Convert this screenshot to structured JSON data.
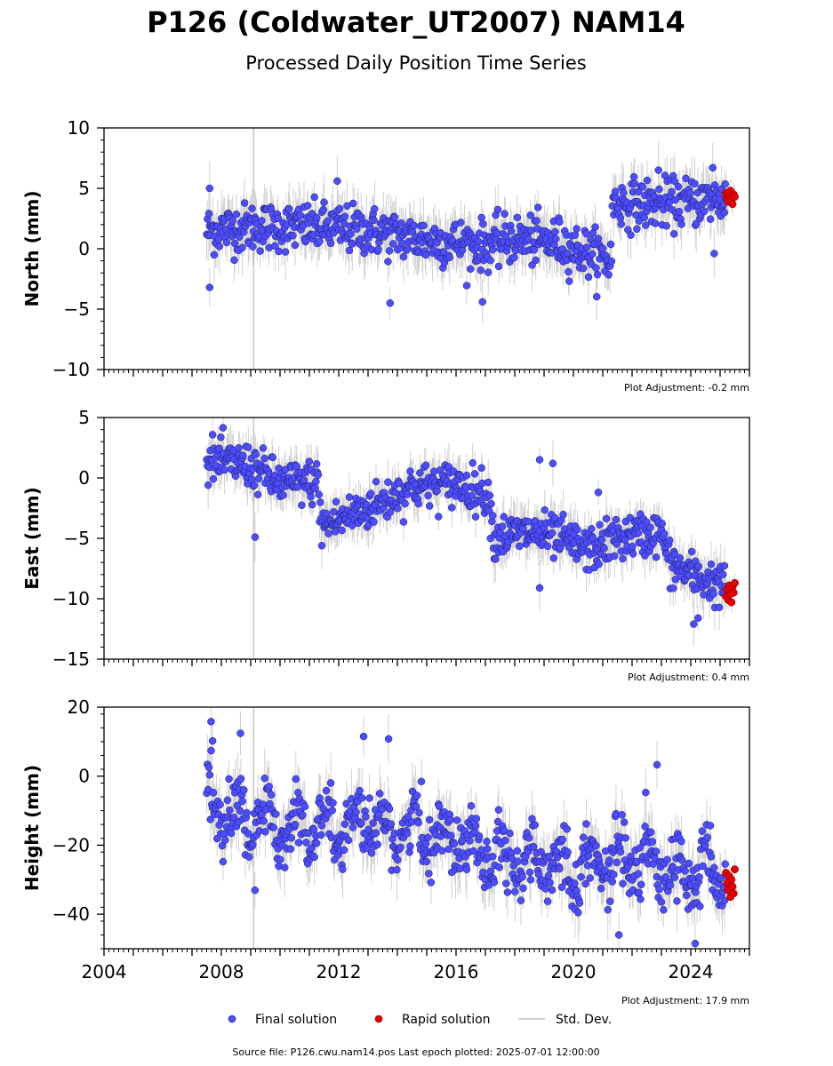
{
  "title": "P126 (Coldwater_UT2007) NAM14",
  "subtitle": "Processed Daily Position Time Series",
  "source_line": "Source file: P126.cwu.nam14.pos  Last epoch plotted: 2025-07-01 12:00:00",
  "legend": {
    "final_label": "Final solution",
    "rapid_label": "Rapid solution",
    "std_label": "Std. Dev."
  },
  "colors": {
    "final": "#4d4dff",
    "final_edge": "#1a1a55",
    "rapid": "#e60000",
    "rapid_edge": "#7a0000",
    "std": "#9a9a9a",
    "vline": "#c8c8c8"
  },
  "chart_data": [
    {
      "type": "scatter",
      "ylabel": "North (mm)",
      "ylim": [
        -10,
        10
      ],
      "yticks": [
        10,
        5,
        0,
        -5,
        -10
      ],
      "ytick_labels": [
        "10",
        "5",
        "0",
        "−5",
        "−10"
      ],
      "xlim": [
        2004,
        2026
      ],
      "adjustment": "Plot Adjustment: -0.2 mm",
      "data_start": 2007.5,
      "rapid_start": 2025.2,
      "data_end": 2025.5,
      "vertical_line": 2009.1,
      "noise_sd": 1.0,
      "err_half": 1.6,
      "trend": [
        [
          2007.5,
          1.5
        ],
        [
          2009.0,
          1.8
        ],
        [
          2011.0,
          1.8
        ],
        [
          2013.0,
          1.5
        ],
        [
          2015.0,
          0.7
        ],
        [
          2017.0,
          0.3
        ],
        [
          2018.0,
          0.8
        ],
        [
          2019.5,
          0.5
        ],
        [
          2021.3,
          -1.0
        ],
        [
          2021.31,
          3.8
        ],
        [
          2023.0,
          3.7
        ],
        [
          2025.5,
          4.2
        ]
      ],
      "rapid_values": [
        4.6,
        4.2,
        3.9,
        4.4,
        4.8,
        4.1,
        3.7,
        4.5,
        4.3
      ],
      "outliers": [
        [
          2007.6,
          -3.2
        ],
        [
          2007.6,
          5.0
        ],
        [
          2013.75,
          -4.5
        ],
        [
          2016.9,
          -4.4
        ],
        [
          2011.95,
          5.6
        ],
        [
          2022.9,
          6.5
        ],
        [
          2024.8,
          -0.4
        ],
        [
          2024.75,
          6.7
        ]
      ]
    },
    {
      "type": "scatter",
      "ylabel": "East (mm)",
      "ylim": [
        -15,
        5
      ],
      "yticks": [
        5,
        0,
        -5,
        -10,
        -15
      ],
      "ytick_labels": [
        "5",
        "0",
        "−5",
        "−10",
        "−15"
      ],
      "xlim": [
        2004,
        2026
      ],
      "adjustment": "Plot Adjustment: 0.4 mm",
      "data_start": 2007.5,
      "rapid_start": 2025.2,
      "data_end": 2025.5,
      "vertical_line": 2009.1,
      "noise_sd": 0.9,
      "err_half": 1.4,
      "trend": [
        [
          2007.5,
          1.5
        ],
        [
          2009.0,
          1.0
        ],
        [
          2010.0,
          -0.5
        ],
        [
          2011.3,
          -0.3
        ],
        [
          2011.4,
          -4.0
        ],
        [
          2012.5,
          -3.0
        ],
        [
          2013.5,
          -2.0
        ],
        [
          2014.5,
          -0.7
        ],
        [
          2016.0,
          -0.5
        ],
        [
          2017.1,
          -1.3
        ],
        [
          2017.3,
          -5.0
        ],
        [
          2018.5,
          -4.5
        ],
        [
          2019.5,
          -5.0
        ],
        [
          2020.5,
          -6.0
        ],
        [
          2021.5,
          -5.0
        ],
        [
          2023.0,
          -4.5
        ],
        [
          2023.3,
          -7.2
        ],
        [
          2024.0,
          -8.0
        ],
        [
          2025.5,
          -9.3
        ]
      ],
      "rapid_values": [
        -9.8,
        -9.2,
        -10.1,
        -8.9,
        -9.6,
        -10.3,
        -9.0,
        -9.5,
        -8.7
      ],
      "outliers": [
        [
          2009.15,
          -4.9
        ],
        [
          2018.85,
          1.5
        ],
        [
          2019.3,
          1.2
        ],
        [
          2020.85,
          -1.2
        ],
        [
          2018.85,
          -9.1
        ],
        [
          2024.1,
          -12.1
        ],
        [
          2024.25,
          -11.6
        ]
      ]
    },
    {
      "type": "scatter",
      "ylabel": "Height (mm)",
      "ylim": [
        -50,
        20
      ],
      "yticks": [
        20,
        0,
        -20,
        -40
      ],
      "ytick_labels": [
        "20",
        "0",
        "−20",
        "−40"
      ],
      "xlim": [
        2004,
        2026
      ],
      "xticks": [
        2004,
        2008,
        2012,
        2016,
        2020,
        2024
      ],
      "xtick_labels": [
        "2004",
        "2008",
        "2012",
        "2016",
        "2020",
        "2024"
      ],
      "adjustment": "Plot Adjustment: 17.9 mm",
      "data_start": 2007.5,
      "rapid_start": 2025.2,
      "data_end": 2025.5,
      "vertical_line": 2009.1,
      "noise_sd": 4.5,
      "err_half": 6.0,
      "annual_amp": 6.0,
      "trend": [
        [
          2007.5,
          -8
        ],
        [
          2009.0,
          -13
        ],
        [
          2011.0,
          -15
        ],
        [
          2013.0,
          -15
        ],
        [
          2015.0,
          -16
        ],
        [
          2017.0,
          -20
        ],
        [
          2018.0,
          -25
        ],
        [
          2020.0,
          -26
        ],
        [
          2022.0,
          -24
        ],
        [
          2023.5,
          -28
        ],
        [
          2025.5,
          -28
        ]
      ],
      "rapid_values": [
        -28,
        -31,
        -33,
        -29,
        -35,
        -30,
        -32,
        -34,
        -27
      ],
      "outliers": [
        [
          2007.65,
          15.8
        ],
        [
          2007.7,
          10.2
        ],
        [
          2008.65,
          12.4
        ],
        [
          2012.85,
          11.5
        ],
        [
          2013.7,
          10.8
        ],
        [
          2022.85,
          3.3
        ],
        [
          2021.55,
          -46
        ],
        [
          2024.15,
          -48.5
        ]
      ]
    }
  ]
}
